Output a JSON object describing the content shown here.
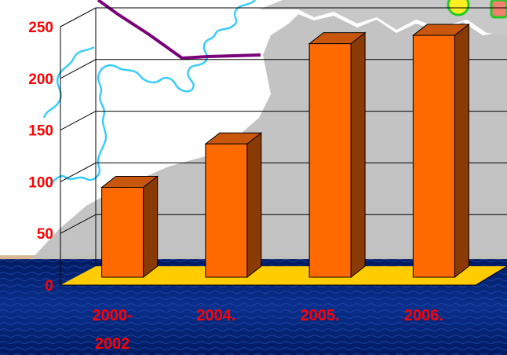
{
  "chart_data": {
    "type": "bar",
    "categories": [
      "2000-2002",
      "2004.",
      "2005.",
      "2006."
    ],
    "category_lines": [
      [
        "2000-",
        "2002"
      ],
      [
        "2004."
      ],
      [
        "2005."
      ],
      [
        "2006."
      ]
    ],
    "values": [
      87,
      129,
      226,
      234
    ],
    "ylim": [
      0,
      250
    ],
    "y_ticks": [
      "0",
      "50",
      "100",
      "150",
      "200",
      "250"
    ],
    "y_tick_values": [
      0,
      50,
      100,
      150,
      200,
      250
    ],
    "title": "",
    "xlabel": "",
    "ylabel": "",
    "grid": true,
    "style": "3d-column"
  },
  "colors": {
    "bar_front": "#ff6a00",
    "bar_side": "#8a3a05",
    "bar_top": "#c8560c",
    "floor": "#ffcc00",
    "label": "#ff0000",
    "sea_dark": "#001a60",
    "sea_mid": "#0a2f8c",
    "land": "#c0c0c0",
    "coastline": "#33ccff",
    "border_line": "#7a007a"
  }
}
